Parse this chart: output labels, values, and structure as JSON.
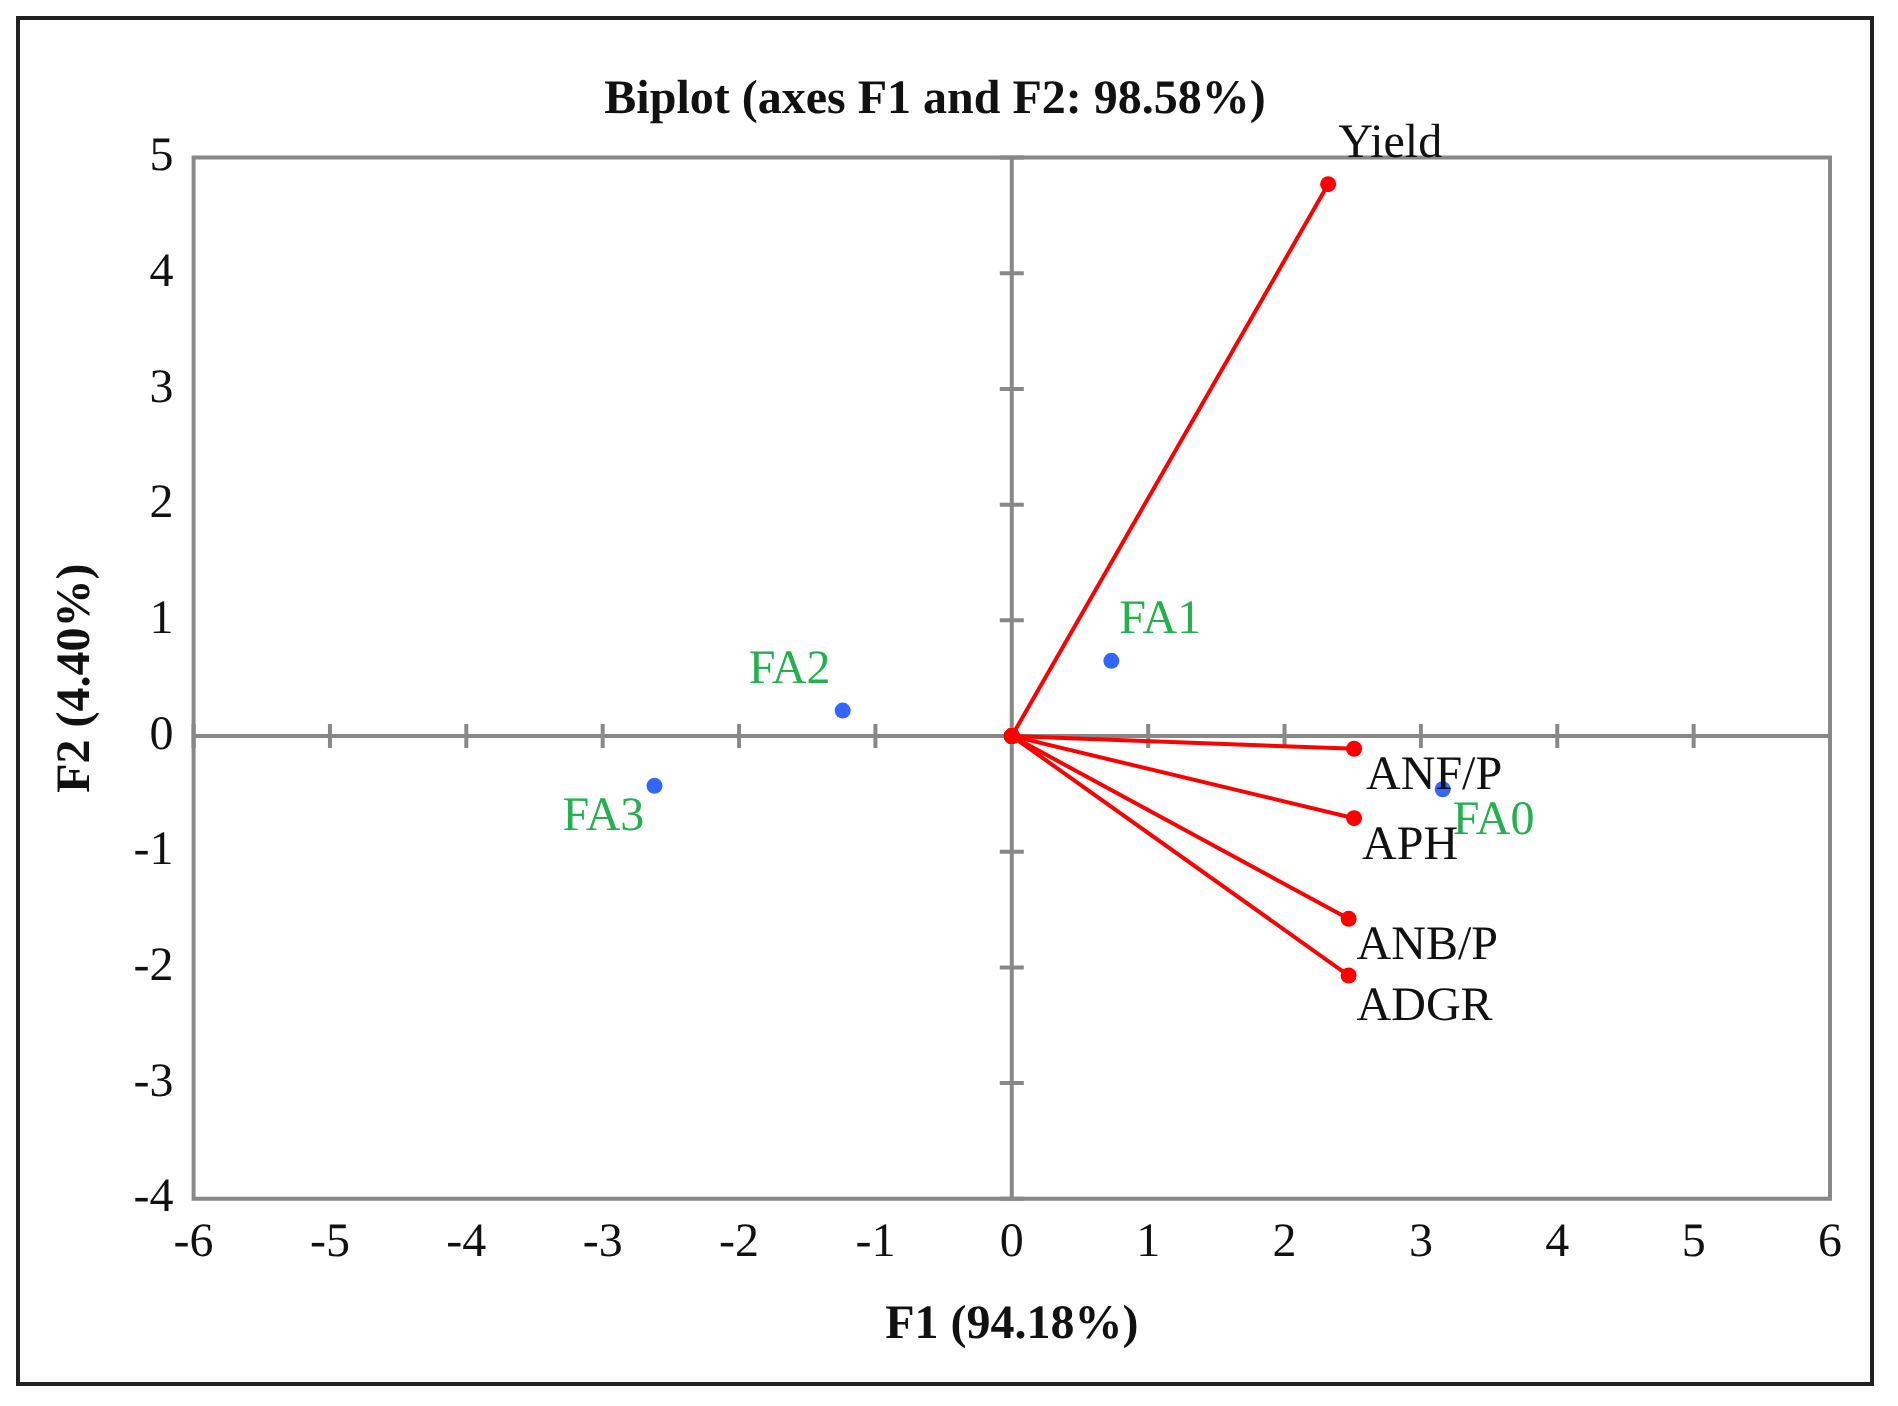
{
  "chart_data": {
    "type": "line",
    "title": "Biplot (axes F1 and F2: 98.58%)",
    "xlabel": "F1 (94.18%)",
    "ylabel": "F2 (4.40%)",
    "xlim": [
      -6,
      6
    ],
    "xticks": [
      -6,
      -5,
      -4,
      -3,
      -2,
      -1,
      0,
      1,
      2,
      3,
      4,
      5,
      6
    ],
    "ylim": [
      -4,
      5
    ],
    "yticks": [
      -4,
      -3,
      -2,
      -1,
      0,
      1,
      2,
      3,
      4,
      5
    ],
    "legend": false,
    "marker": "circle",
    "line_style": "solid",
    "series": [
      {
        "type": "line",
        "color": "#ff0000",
        "x": [
          0,
          2.32
        ],
        "values": [
          0,
          4.77
        ]
      },
      {
        "type": "line",
        "color": "#ff0000",
        "x": [
          0,
          2.51
        ],
        "values": [
          0,
          -0.11
        ]
      },
      {
        "type": "line",
        "color": "#ff0000",
        "x": [
          0,
          2.51
        ],
        "values": [
          0,
          -0.71
        ]
      },
      {
        "type": "line",
        "color": "#ff0000",
        "x": [
          0,
          2.47
        ],
        "values": [
          0,
          -1.58
        ]
      },
      {
        "type": "line",
        "color": "#ff0000",
        "x": [
          0,
          2.47
        ],
        "values": [
          0,
          -2.07
        ]
      },
      {
        "type": "scatter",
        "color": "#3366ff",
        "x": [
          3.16,
          0.73,
          -1.24,
          -2.62
        ],
        "values": [
          -0.46,
          0.65,
          0.22,
          -0.43
        ]
      }
    ],
    "annotations": [
      {
        "text": "Yield",
        "x": 2.32,
        "y": 4.77
      },
      {
        "text": "ANF/P",
        "x": 2.51,
        "y": -0.11
      },
      {
        "text": "APH",
        "x": 2.51,
        "y": -0.71
      },
      {
        "text": "ANB/P",
        "x": 2.47,
        "y": -1.58
      },
      {
        "text": "ADGR",
        "x": 2.47,
        "y": -2.07
      },
      {
        "text": "FA0",
        "x": 3.16,
        "y": -0.46
      },
      {
        "text": "FA1",
        "x": 0.73,
        "y": 0.65
      },
      {
        "text": "FA2",
        "x": -1.24,
        "y": 0.22
      },
      {
        "text": "FA3",
        "x": -2.62,
        "y": -0.43
      }
    ]
  }
}
